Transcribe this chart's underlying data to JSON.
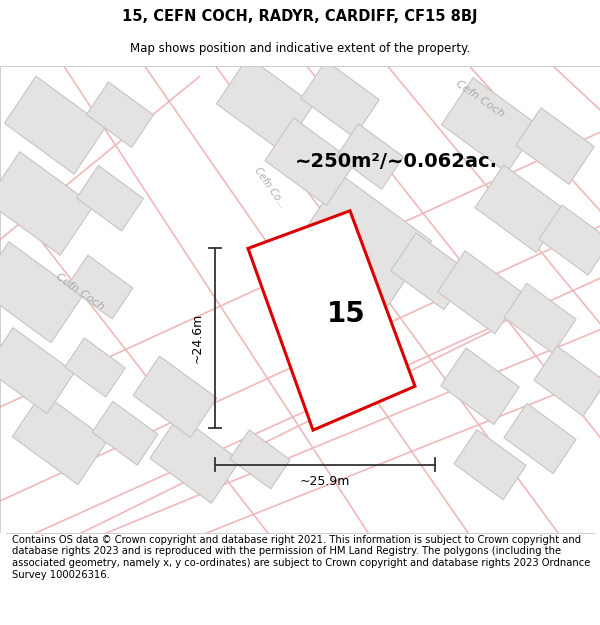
{
  "title": "15, CEFN COCH, RADYR, CARDIFF, CF15 8BJ",
  "subtitle": "Map shows position and indicative extent of the property.",
  "footer": "Contains OS data © Crown copyright and database right 2021. This information is subject to Crown copyright and database rights 2023 and is reproduced with the permission of HM Land Registry. The polygons (including the associated geometry, namely x, y co-ordinates) are subject to Crown copyright and database rights 2023 Ordnance Survey 100026316.",
  "area_label": "~250m²/~0.062ac.",
  "width_label": "~25.9m",
  "height_label": "~24.6m",
  "plot_number": "15",
  "map_bg": "#f5f3f3",
  "road_color": "#f0b8b8",
  "road_lw": 1.2,
  "building_fc": "#e5e2e2",
  "building_ec": "#c8c4c4",
  "building_lw": 0.8,
  "plot_color": "#dd0000",
  "plot_lw": 2.2,
  "dim_color": "#333333",
  "road_label_color": "#aaaaaa",
  "title_fontsize": 10.5,
  "subtitle_fontsize": 8.5,
  "footer_fontsize": 7.2,
  "area_fontsize": 14,
  "dim_fontsize": 9,
  "plot_label_fontsize": 20
}
